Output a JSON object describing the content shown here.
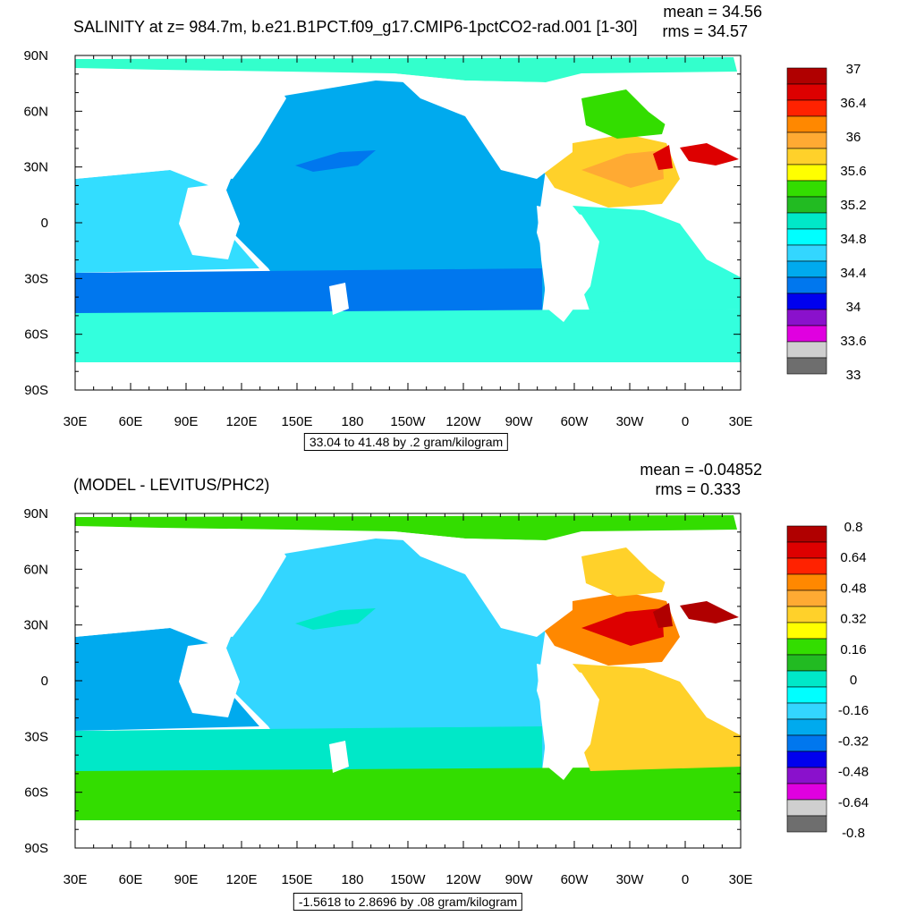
{
  "chart_data": [
    {
      "type": "heatmap",
      "title": "SALINITY at z= 984.7m, b.e21.B1PCT.f09_g17.CMIP6-1pctCO2-rad.001 [1-30]",
      "stats": {
        "mean": "mean = 34.56",
        "rms": "rms = 34.57"
      },
      "units_note": "33.04 to 41.48 by .2 gram/kilogram",
      "x_ticks": [
        "30E",
        "60E",
        "90E",
        "120E",
        "150E",
        "180",
        "150W",
        "120W",
        "90W",
        "60W",
        "30W",
        "0",
        "30E"
      ],
      "y_ticks": [
        "90N",
        "60N",
        "30N",
        "0",
        "30S",
        "60S",
        "90S"
      ],
      "colorbar": {
        "labels": [
          "37",
          "36.4",
          "36",
          "35.6",
          "35.2",
          "34.8",
          "34.4",
          "34",
          "33.6",
          "33"
        ],
        "colors": [
          "#b00000",
          "#dd0000",
          "#ff2200",
          "#ff8800",
          "#ffaa33",
          "#ffd12a",
          "#ffff00",
          "#33dd00",
          "#22bb22",
          "#00e8c8",
          "#00ffff",
          "#33d6ff",
          "#00aaee",
          "#0077ee",
          "#0000ee",
          "#8a11cc",
          "#e000e0",
          "#cfcfcf",
          "#6e6e6e"
        ]
      },
      "regions": {
        "arctic": "#33ffcc",
        "pacific": "#00aaee",
        "south_band": "#0077ee",
        "southern_ocean": "#33ffdd",
        "indian": "#33ddff",
        "atlantic_n_warm": "#ffd12a",
        "atlantic_n_hot": "#ffaa33",
        "med": "#dd0000",
        "labrador": "#33dd00",
        "atlantic_s": "#33ffdd",
        "pacific_core": "#0077ee"
      }
    },
    {
      "type": "heatmap",
      "title": "(MODEL - LEVITUS/PHC2)",
      "stats": {
        "mean": "mean = -0.04852",
        "rms": "rms = 0.333"
      },
      "units_note": "-1.5618 to 2.8696 by .08 gram/kilogram",
      "x_ticks": [
        "30E",
        "60E",
        "90E",
        "120E",
        "150E",
        "180",
        "150W",
        "120W",
        "90W",
        "60W",
        "30W",
        "0",
        "30E"
      ],
      "y_ticks": [
        "90N",
        "60N",
        "30N",
        "0",
        "30S",
        "60S",
        "90S"
      ],
      "colorbar": {
        "labels": [
          "0.8",
          "0.64",
          "0.48",
          "0.32",
          "0.16",
          "0",
          "-0.16",
          "-0.32",
          "-0.48",
          "-0.64",
          "-0.8"
        ],
        "colors": [
          "#b00000",
          "#dd0000",
          "#ff2200",
          "#ff8800",
          "#ffaa33",
          "#ffd12a",
          "#ffff00",
          "#33dd00",
          "#22bb22",
          "#00e8c8",
          "#00ffff",
          "#33d6ff",
          "#00aaee",
          "#0077ee",
          "#0000ee",
          "#8a11cc",
          "#e000e0",
          "#cfcfcf",
          "#6e6e6e"
        ]
      },
      "regions": {
        "arctic": "#33dd00",
        "pacific": "#33d6ff",
        "indian": "#00aaee",
        "southern_ocean": "#33dd00",
        "south_band": "#00e8c8",
        "atlantic_n_hot": "#dd0000",
        "atlantic_n_warm": "#ff8800",
        "labrador": "#ffd12a",
        "atlantic_s": "#ffd12a",
        "pacific_core": "#00e8c8",
        "med": "#b00000"
      }
    }
  ]
}
